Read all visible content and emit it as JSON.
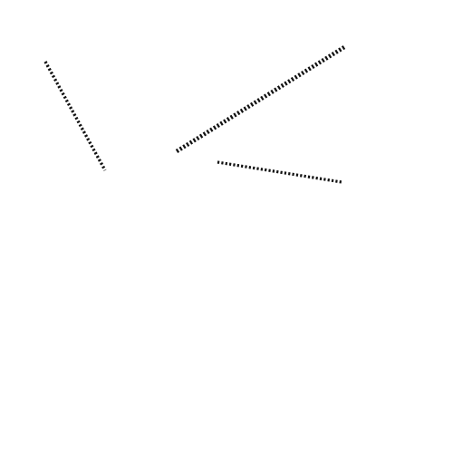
{
  "scene": {
    "background_color": "#ffffff",
    "line_color": "#111111",
    "line_style": "dotted",
    "segment_count": 3
  }
}
